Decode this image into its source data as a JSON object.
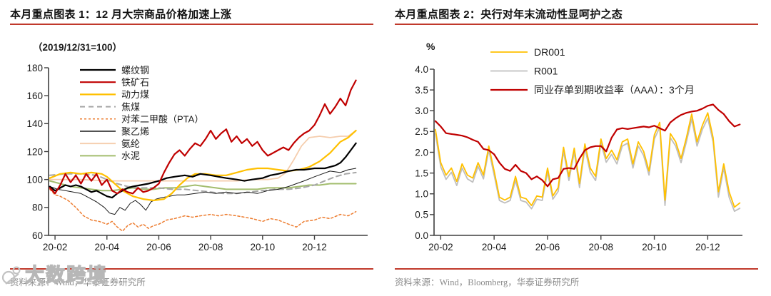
{
  "panels": [
    {
      "title": "本月重点图表 1：12 月大宗商品价格加速上涨"
    },
    {
      "title": "本月重点图表 2：央行对年末流动性显呵护之态"
    }
  ],
  "sources": [
    {
      "text": "资料来源：Wind，华泰证券研究所"
    },
    {
      "text": "资料来源：Wind，Bloomberg，华泰证券研究所"
    }
  ],
  "watermark": {
    "text": "大数跨境"
  },
  "colors": {
    "accent_red": "#c0392b",
    "axis": "#3f3f3f",
    "tick_text": "#1a1a1a",
    "source_text": "#8c8c8c"
  },
  "chart_data": [
    {
      "type": "line",
      "title": "12 月大宗商品价格加速上涨",
      "subtitle": "（2019/12/31=100）",
      "xlabel": "",
      "ylabel": "",
      "ylim": [
        60,
        180
      ],
      "yticks": [
        180,
        160,
        140,
        120,
        100,
        80,
        60
      ],
      "xticks": [
        {
          "x": 1,
          "label": "20-02"
        },
        {
          "x": 3,
          "label": "20-04"
        },
        {
          "x": 5,
          "label": "20-06"
        },
        {
          "x": 7,
          "label": "20-08"
        },
        {
          "x": 9,
          "label": "20-10"
        },
        {
          "x": 11,
          "label": "20-12"
        }
      ],
      "grid": false,
      "legend_position": "upper-left-inside",
      "series": [
        {
          "name": "螺纹钢",
          "color": "#000000",
          "width": 2.2,
          "dash": null,
          "x": [
            0.8,
            1.0,
            1.2,
            1.4,
            1.6,
            1.8,
            2.0,
            2.2,
            2.4,
            2.6,
            2.8,
            3.0,
            3.2,
            3.4,
            3.6,
            3.8,
            4.0,
            4.3,
            4.6,
            5.0,
            5.3,
            5.6,
            6.0,
            6.3,
            6.6,
            7.0,
            7.3,
            7.6,
            8.0,
            8.3,
            8.6,
            9.0,
            9.3,
            9.6,
            10.0,
            10.3,
            10.6,
            11.0,
            11.4,
            11.8,
            12.0,
            12.2,
            12.4,
            12.6
          ],
          "y": [
            95,
            92,
            94,
            96,
            95,
            96,
            95,
            93,
            91,
            92,
            90,
            88,
            87,
            90,
            92,
            94,
            95,
            96,
            97,
            99,
            101,
            102,
            103,
            102,
            104,
            103,
            102,
            101,
            100,
            99,
            100,
            101,
            103,
            104,
            106,
            107,
            107,
            108,
            108,
            110,
            112,
            116,
            121,
            126
          ]
        },
        {
          "name": "铁矿石",
          "color": "#c00000",
          "width": 2.2,
          "dash": null,
          "x": [
            0.8,
            1.0,
            1.2,
            1.4,
            1.6,
            1.8,
            2.0,
            2.2,
            2.4,
            2.6,
            2.8,
            3.0,
            3.2,
            3.4,
            3.6,
            3.8,
            4.0,
            4.2,
            4.4,
            4.6,
            4.8,
            5.0,
            5.2,
            5.4,
            5.6,
            5.8,
            6.0,
            6.2,
            6.4,
            6.6,
            6.8,
            7.0,
            7.2,
            7.4,
            7.6,
            7.8,
            8.0,
            8.2,
            8.4,
            8.6,
            8.8,
            9.0,
            9.2,
            9.4,
            9.6,
            9.8,
            10.0,
            10.2,
            10.4,
            10.6,
            10.8,
            11.0,
            11.2,
            11.4,
            11.6,
            11.8,
            12.0,
            12.2,
            12.4,
            12.6
          ],
          "y": [
            94,
            90,
            96,
            104,
            98,
            103,
            97,
            104,
            99,
            104,
            96,
            100,
            92,
            90,
            93,
            91,
            90,
            94,
            91,
            92,
            94,
            97,
            105,
            112,
            118,
            121,
            117,
            122,
            126,
            124,
            129,
            135,
            129,
            133,
            136,
            127,
            131,
            126,
            129,
            124,
            127,
            121,
            117,
            119,
            121,
            123,
            121,
            126,
            130,
            133,
            135,
            139,
            146,
            154,
            147,
            152,
            158,
            153,
            164,
            171
          ]
        },
        {
          "name": "动力煤",
          "color": "#ffc000",
          "width": 2.2,
          "dash": null,
          "x": [
            0.8,
            1.2,
            1.6,
            2.0,
            2.4,
            2.8,
            3.0,
            3.3,
            3.6,
            4.0,
            4.4,
            4.8,
            5.2,
            5.5,
            5.8,
            6.1,
            6.4,
            6.8,
            7.2,
            7.6,
            8.0,
            8.4,
            8.8,
            9.2,
            9.6,
            10.0,
            10.4,
            10.8,
            11.2,
            11.6,
            12.0,
            12.3,
            12.6
          ],
          "y": [
            101,
            104,
            105,
            104,
            105,
            104,
            102,
            97,
            92,
            88,
            86,
            85,
            86,
            90,
            96,
            101,
            104,
            104,
            103,
            103,
            105,
            107,
            108,
            108,
            107,
            106,
            107,
            109,
            113,
            119,
            127,
            130,
            135
          ]
        },
        {
          "name": "焦煤",
          "color": "#a6a6a6",
          "width": 2,
          "dash": "7,5",
          "x": [
            0.8,
            1.4,
            2.0,
            2.6,
            3.0,
            3.4,
            3.8,
            4.2,
            4.6,
            5.0,
            5.5,
            6.0,
            6.5,
            7.0,
            7.5,
            8.0,
            8.5,
            9.0,
            9.5,
            10.0,
            10.5,
            11.0,
            11.4,
            11.8,
            12.2,
            12.6
          ],
          "y": [
            103,
            104,
            104,
            103,
            100,
            97,
            95,
            94,
            94,
            94,
            93,
            93,
            92,
            91,
            90,
            90,
            91,
            92,
            93,
            93,
            94,
            96,
            99,
            102,
            104,
            105
          ]
        },
        {
          "name": "对苯二甲酸（PTA）",
          "color": "#ed7d31",
          "width": 1.5,
          "dash": "3,3",
          "x": [
            0.8,
            1.0,
            1.2,
            1.5,
            1.8,
            2.1,
            2.4,
            2.7,
            3.0,
            3.2,
            3.4,
            3.6,
            3.8,
            4.0,
            4.2,
            4.4,
            4.6,
            4.8,
            5.0,
            5.3,
            5.6,
            6.0,
            6.3,
            6.6,
            7.0,
            7.3,
            7.6,
            8.0,
            8.3,
            8.6,
            9.0,
            9.3,
            9.6,
            10.0,
            10.3,
            10.6,
            11.0,
            11.3,
            11.6,
            12.0,
            12.3,
            12.6
          ],
          "y": [
            93,
            89,
            88,
            85,
            80,
            74,
            71,
            70,
            68,
            70,
            66,
            63,
            67,
            69,
            66,
            68,
            65,
            67,
            68,
            71,
            72,
            74,
            73,
            74,
            75,
            74,
            75,
            74,
            73,
            72,
            70,
            72,
            71,
            68,
            66,
            70,
            71,
            73,
            72,
            75,
            74,
            77
          ]
        },
        {
          "name": "聚乙烯",
          "color": "#1a1a1a",
          "width": 1,
          "dash": null,
          "x": [
            0.8,
            1.1,
            1.4,
            1.7,
            2.0,
            2.3,
            2.6,
            2.9,
            3.1,
            3.3,
            3.5,
            3.7,
            3.9,
            4.1,
            4.3,
            4.5,
            4.7,
            4.9,
            5.1,
            5.4,
            5.7,
            6.0,
            6.4,
            6.8,
            7.2,
            7.6,
            8.0,
            8.4,
            8.8,
            9.2,
            9.6,
            10.0,
            10.3,
            10.6,
            11.0,
            11.3,
            11.6,
            12.0,
            12.3,
            12.6
          ],
          "y": [
            95,
            93,
            92,
            91,
            90,
            87,
            84,
            80,
            76,
            75,
            80,
            78,
            83,
            85,
            82,
            78,
            84,
            86,
            87,
            88,
            89,
            89,
            90,
            91,
            90,
            91,
            90,
            91,
            90,
            92,
            93,
            95,
            97,
            99,
            102,
            104,
            106,
            105,
            107,
            108
          ]
        },
        {
          "name": "氨纶",
          "color": "#f5cdad",
          "width": 1.8,
          "dash": null,
          "x": [
            0.8,
            2.0,
            3.0,
            4.0,
            5.0,
            6.0,
            7.0,
            8.0,
            8.6,
            9.2,
            9.6,
            9.9,
            10.2,
            10.5,
            10.8,
            11.2,
            11.6,
            12.0,
            12.3,
            12.6
          ],
          "y": [
            100,
            100,
            99,
            99,
            99,
            99,
            99,
            99,
            100,
            100,
            101,
            105,
            114,
            124,
            130,
            131,
            130,
            131,
            131,
            135
          ]
        },
        {
          "name": "水泥",
          "color": "#a3bd6e",
          "width": 2,
          "dash": null,
          "x": [
            0.8,
            1.2,
            1.6,
            2.0,
            2.4,
            2.8,
            3.2,
            3.6,
            4.0,
            4.4,
            4.8,
            5.2,
            5.6,
            6.0,
            6.4,
            6.8,
            7.2,
            7.6,
            8.0,
            8.4,
            8.8,
            9.2,
            9.6,
            10.0,
            10.4,
            10.8,
            11.2,
            11.6,
            12.0,
            12.6
          ],
          "y": [
            99,
            97,
            95,
            94,
            93,
            92,
            92,
            93,
            94,
            93,
            93,
            94,
            94,
            95,
            96,
            95,
            94,
            93,
            93,
            93,
            93,
            94,
            94,
            94,
            95,
            96,
            96,
            97,
            97,
            97
          ]
        }
      ]
    },
    {
      "type": "line",
      "title": "央行对年末流动性显呵护之态",
      "xlabel": "",
      "ylabel": "%",
      "ylim": [
        0,
        4
      ],
      "yticks": [
        4.0,
        3.5,
        3.0,
        2.5,
        2.0,
        1.5,
        1.0,
        0.5,
        0.0
      ],
      "xticks": [
        {
          "x": 1,
          "label": "20-02"
        },
        {
          "x": 3,
          "label": "20-04"
        },
        {
          "x": 5,
          "label": "20-06"
        },
        {
          "x": 7,
          "label": "20-08"
        },
        {
          "x": 9,
          "label": "20-10"
        },
        {
          "x": 11,
          "label": "20-12"
        }
      ],
      "grid": false,
      "legend_position": "top",
      "series": [
        {
          "name": "DR001",
          "color": "#ffc000",
          "width": 1.8,
          "dash": null,
          "x_start": 0.8,
          "x_step": 0.2,
          "y": [
            2.55,
            1.75,
            1.45,
            1.62,
            1.3,
            1.72,
            1.45,
            1.38,
            1.75,
            1.45,
            2.15,
            1.55,
            0.92,
            0.85,
            0.92,
            1.42,
            0.92,
            0.88,
            0.72,
            0.95,
            0.92,
            1.62,
            0.95,
            1.15,
            2.12,
            1.42,
            2.1,
            1.25,
            2.2,
            1.62,
            1.42,
            2.32,
            1.85,
            2.05,
            1.82,
            2.25,
            2.32,
            1.72,
            2.25,
            2.02,
            1.55,
            2.42,
            2.72,
            0.85,
            2.45,
            2.25,
            1.85,
            2.35,
            2.92,
            2.25,
            2.65,
            2.95,
            2.35,
            1.05,
            1.72,
            1.05,
            0.68,
            0.78
          ]
        },
        {
          "name": "R001",
          "color": "#bfbfbf",
          "width": 1.8,
          "dash": null,
          "x_start": 0.8,
          "x_step": 0.2,
          "y": [
            2.45,
            1.65,
            1.35,
            1.52,
            1.2,
            1.62,
            1.36,
            1.28,
            1.66,
            1.36,
            2.05,
            1.45,
            0.84,
            0.78,
            0.84,
            1.32,
            0.84,
            0.8,
            0.64,
            0.87,
            0.84,
            1.52,
            0.87,
            1.06,
            2.02,
            1.32,
            2.0,
            1.15,
            2.1,
            1.52,
            1.32,
            2.22,
            1.76,
            1.95,
            1.72,
            2.15,
            2.22,
            1.62,
            2.15,
            1.92,
            1.45,
            2.32,
            2.6,
            0.72,
            2.35,
            2.15,
            1.75,
            2.25,
            2.8,
            2.15,
            2.55,
            2.82,
            2.25,
            0.92,
            1.62,
            0.92,
            0.58,
            0.65
          ]
        },
        {
          "name": "同业存单到期收益率（AAA）：3个月",
          "color": "#c00000",
          "width": 2.2,
          "dash": null,
          "x_start": 0.8,
          "x_step": 0.2,
          "y": [
            2.75,
            2.62,
            2.46,
            2.44,
            2.42,
            2.4,
            2.36,
            2.3,
            2.25,
            2.08,
            2.05,
            1.95,
            1.75,
            1.6,
            1.55,
            1.7,
            1.55,
            1.5,
            1.35,
            1.42,
            1.33,
            1.18,
            1.35,
            1.38,
            1.6,
            1.62,
            1.6,
            1.85,
            2.05,
            2.12,
            2.15,
            2.15,
            2.02,
            2.35,
            2.55,
            2.58,
            2.56,
            2.58,
            2.6,
            2.62,
            2.6,
            2.64,
            2.58,
            2.52,
            2.72,
            2.82,
            2.9,
            2.95,
            2.98,
            3.0,
            3.05,
            3.12,
            3.15,
            3.02,
            2.92,
            2.75,
            2.62,
            2.67
          ]
        }
      ]
    }
  ]
}
